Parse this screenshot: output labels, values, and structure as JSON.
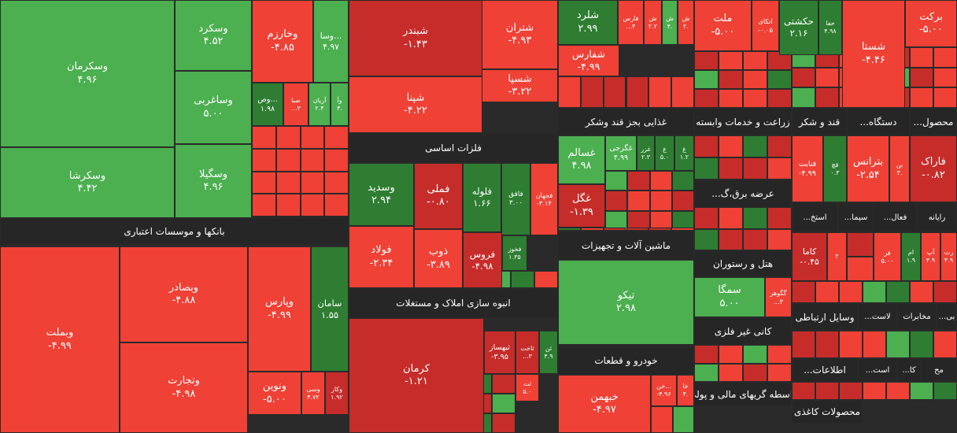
{
  "tiles": [
    {
      "name": "وسکرمان",
      "change": "۴.۹۶"
    },
    {
      "name": "وسکرد",
      "change": "۴.۵۲"
    },
    {
      "name": "وساغربی",
      "change": "۵.۰۰"
    },
    {
      "name": "وسکرشا",
      "change": "۴.۴۲"
    },
    {
      "name": "وسگیلا",
      "change": "۴.۹۶"
    },
    {
      "name": "وبملت",
      "change": "-۴.۹۹"
    },
    {
      "name": "وبصادر",
      "change": "-۴.۸۸"
    },
    {
      "name": "وتجارت",
      "change": "-۴.۹۸"
    },
    {
      "name": "وپارس",
      "change": "-۴.۹۹"
    },
    {
      "name": "سامان",
      "change": "۱.۵۵"
    },
    {
      "name": "ونوین",
      "change": "-۵.۰۰"
    },
    {
      "name": "وسی",
      "change": "۴.۷۲"
    },
    {
      "name": "وکار",
      "change": "۱.۹۲"
    },
    {
      "name": "وخارزم",
      "change": "-۴.۸۵"
    },
    {
      "name": "وسا...",
      "change": "۴.۹۷"
    },
    {
      "name": "وص...",
      "change": "۱.۹۸"
    },
    {
      "name": "صبا",
      "change": "...۳"
    },
    {
      "name": "آریان",
      "change": "۲.۴"
    },
    {
      "name": "وآ",
      "change": "۴."
    },
    {
      "name": "شبندر",
      "change": "-۱.۴۳"
    },
    {
      "name": "شپنا",
      "change": "-۴.۲۲"
    },
    {
      "name": "شتران",
      "change": "-۴.۹۳"
    },
    {
      "name": "شسپا",
      "change": "-۳.۲۲"
    },
    {
      "name": "وسدید",
      "change": "۲.۹۴"
    },
    {
      "name": "فملی",
      "change": "-۰.۸۰"
    },
    {
      "name": "فلوله",
      "change": "۱.۶۶"
    },
    {
      "name": "فافق",
      "change": "۳.۰۰"
    },
    {
      "name": "فجهان",
      "change": "-۳.۱۴"
    },
    {
      "name": "فولاد",
      "change": "-۲.۳۴"
    },
    {
      "name": "ذوب",
      "change": "-۳.۸۹"
    },
    {
      "name": "فروس",
      "change": "-۴.۹۸"
    },
    {
      "name": "فخوز",
      "change": "۱.۳۵"
    },
    {
      "name": "کرمان",
      "change": "-۱.۲۱"
    },
    {
      "name": "ثبهساز",
      "change": "-۳.۹۵"
    },
    {
      "name": "ثاخت",
      "change": "...۳"
    },
    {
      "name": "ثن",
      "change": "۴.۹"
    },
    {
      "name": "ثت",
      "change": "۵.۰"
    },
    {
      "name": "شلرد",
      "change": "۲.۹۹"
    },
    {
      "name": "فارس",
      "change": "...۴"
    },
    {
      "name": "ش",
      "change": "۲.۲"
    },
    {
      "name": "ش",
      "change": "۴."
    },
    {
      "name": "ش",
      "change": "۲."
    },
    {
      "name": "شفارس",
      "change": "-۴.۹۹"
    },
    {
      "name": "غسالم",
      "change": "۴.۹۸"
    },
    {
      "name": "غگرجی",
      "change": "۴.۹۹"
    },
    {
      "name": "غزر",
      "change": "۲.۳"
    },
    {
      "name": "غ",
      "change": "۵.۰"
    },
    {
      "name": "غ",
      "change": "۱.۲"
    },
    {
      "name": "غگل",
      "change": "-۱.۳۹"
    },
    {
      "name": "تیکو",
      "change": "۲.۹۸"
    },
    {
      "name": "خبهمن",
      "change": "-۴.۹۷"
    },
    {
      "name": "خن...",
      "change": "-۴.۹۶"
    },
    {
      "name": "خا",
      "change": "۴."
    },
    {
      "name": "ملت",
      "change": "-۵.۰۰"
    },
    {
      "name": "اتکای",
      "change": "-۰.۰۵"
    },
    {
      "name": "حکشتی",
      "change": "۲.۱۶"
    },
    {
      "name": "حفا",
      "change": "۴.۹۸"
    },
    {
      "name": "شستا",
      "change": "-۴.۴۶"
    },
    {
      "name": "برکت",
      "change": "-۵.۰۰"
    },
    {
      "name": "سمگا",
      "change": "۵.۰۰"
    },
    {
      "name": "گگوهر",
      "change": "...۳"
    },
    {
      "name": "قنابت",
      "change": "-۴.۹۹"
    },
    {
      "name": "قچ",
      "change": "۰.۳"
    },
    {
      "name": "بترانس",
      "change": "-۲.۵۴"
    },
    {
      "name": "بن",
      "change": "۳."
    },
    {
      "name": "فاراک",
      "change": "-۰.۸۲"
    },
    {
      "name": "کاما",
      "change": "-۰.۴۵"
    },
    {
      "name": "۲",
      "change": ""
    },
    {
      "name": "فر",
      "change": "۵.۰۰"
    },
    {
      "name": "ام",
      "change": "۱.۹"
    },
    {
      "name": "آپ",
      "change": "۴.۹"
    },
    {
      "name": "رت",
      "change": "۴.۹"
    }
  ],
  "sectors": [
    "بانکها و موسسات اعتباری",
    "فلزات اساسی",
    "انبوه سازی املاک و مستغلات",
    "غذایی بجز قند وشکر",
    "ماشین آلات و تجهیزات",
    "خودرو و قطعات",
    "زراعت و خدمات وابسته",
    "قند و شکر",
    "دستگاه...",
    "محصول...",
    "عرضه برق،گ...",
    "هتل و رستوران",
    "کانی غیر فلزی",
    "واسطه گریهای مالی و پولی",
    "استخ...",
    "سیما...",
    "فعال...",
    "رایانه",
    "وسایل ارتباطی",
    "لاست...",
    "مخابرات",
    "بی...",
    "اطلاعات...",
    "است...",
    "کا...",
    "مح",
    "محصولات کاغذی"
  ]
}
